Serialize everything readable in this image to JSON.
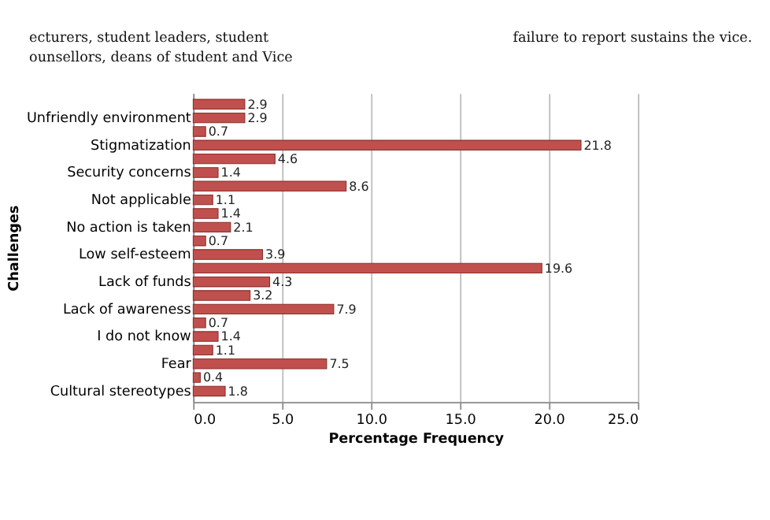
{
  "chart_data": {
    "type": "bar",
    "orientation": "horizontal",
    "xlabel": "Percentage Frequency",
    "ylabel": "Challenges",
    "categories": [
      null,
      "Unfriendly environment",
      null,
      "Stigmatization",
      null,
      "Security concerns",
      null,
      "Not applicable",
      null,
      "No action is taken",
      null,
      "Low self-esteem",
      null,
      "Lack of funds",
      null,
      "Lack of awareness",
      null,
      "I do not know",
      null,
      "Fear",
      null,
      "Cultural stereotypes"
    ],
    "values": [
      2.9,
      2.9,
      0.7,
      21.8,
      4.6,
      1.4,
      8.6,
      1.1,
      1.4,
      2.1,
      0.7,
      3.9,
      19.6,
      4.3,
      3.2,
      7.9,
      0.7,
      1.4,
      1.1,
      7.5,
      0.4,
      1.8
    ],
    "color": "#c0504d",
    "xlim": [
      0,
      25
    ],
    "xticks": [
      {
        "value": 0,
        "label": "0.0"
      },
      {
        "value": 5,
        "label": "5.0"
      },
      {
        "value": 10,
        "label": "10.0"
      },
      {
        "value": 15,
        "label": "15.0"
      },
      {
        "value": 20,
        "label": "20.0"
      },
      {
        "value": 25,
        "label": "25.0"
      }
    ],
    "grid": "x",
    "data_labels": true,
    "annotations": [
      "ecturers,    student    leaders,    student",
      "ounsellors,   deans   of   student   and   Vice",
      "failure to report sustains the vice."
    ]
  }
}
